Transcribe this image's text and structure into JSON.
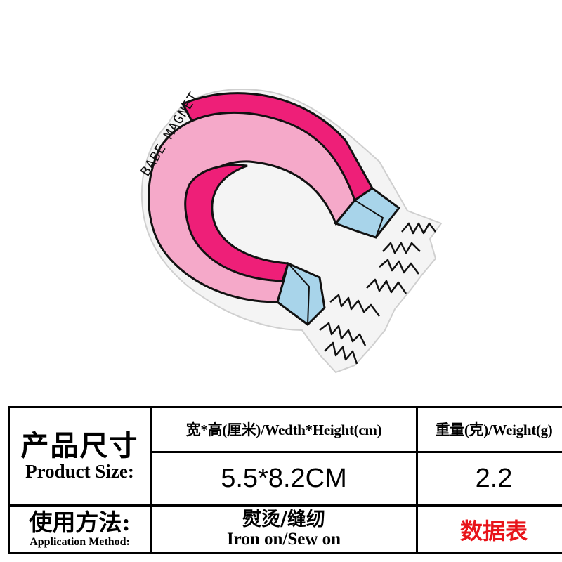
{
  "patch": {
    "text": "BABE MAGNET",
    "colors": {
      "pink": "#f5a9c9",
      "magenta": "#ee1f78",
      "tip_blue": "#a8d4ea",
      "felt": "#f4f4f4",
      "outline": "#111111"
    }
  },
  "table": {
    "product_size_zh": "产品尺寸",
    "product_size_en": "Product Size:",
    "dimension_header": "宽*高(厘米)/Wedth*Height(cm)",
    "weight_header": "重量(克)/Weight(g)",
    "dimension_value": "5.5*8.2CM",
    "weight_value": "2.2",
    "method_zh": "使用方法:",
    "method_en": "Application Method:",
    "method_value_zh": "熨烫/缝纫",
    "method_value_en": "Iron on/Sew on",
    "datasheet_label": "数据表",
    "datasheet_color": "#e8141a"
  }
}
